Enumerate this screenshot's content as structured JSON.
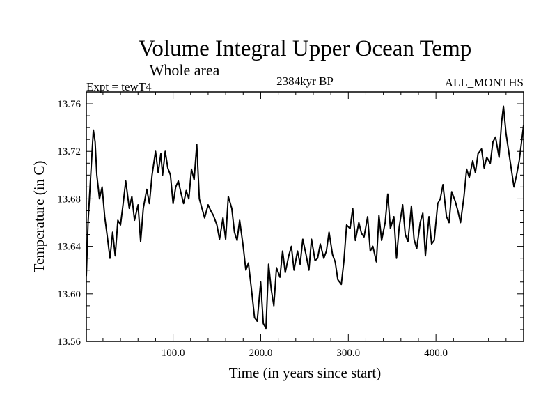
{
  "chart_data": {
    "type": "line",
    "title": "Volume Integral Upper Ocean Temp",
    "subtitle": "Whole area",
    "experiment": "Expt = tewT4",
    "period": "2384kyr BP",
    "months": "ALL_MONTHS",
    "xlabel": "Time (in years since start)",
    "ylabel": "Temperature (in C)",
    "xlim": [
      1,
      500
    ],
    "ylim": [
      13.56,
      13.77
    ],
    "xticks": [
      {
        "value": 100,
        "label": "100.0"
      },
      {
        "value": 200,
        "label": "200.0"
      },
      {
        "value": 300,
        "label": "300.0"
      },
      {
        "value": 400,
        "label": "400.0"
      }
    ],
    "yticks": [
      {
        "value": 13.56,
        "label": "13.56"
      },
      {
        "value": 13.6,
        "label": "13.60"
      },
      {
        "value": 13.64,
        "label": "13.64"
      },
      {
        "value": 13.68,
        "label": "13.68"
      },
      {
        "value": 13.72,
        "label": "13.72"
      },
      {
        "value": 13.76,
        "label": "13.76"
      }
    ],
    "grid": false,
    "series": [
      {
        "name": "Upper Ocean Temp",
        "color": "#000000",
        "x": [
          1,
          3,
          6,
          9,
          11,
          13,
          16,
          19,
          22,
          25,
          28,
          31,
          34,
          37,
          40,
          43,
          46,
          50,
          53,
          56,
          60,
          63,
          66,
          70,
          73,
          76,
          80,
          83,
          86,
          88,
          91,
          94,
          97,
          100,
          103,
          106,
          109,
          112,
          115,
          118,
          121,
          124,
          127,
          130,
          133,
          136,
          140,
          143,
          146,
          150,
          153,
          157,
          160,
          163,
          167,
          170,
          173,
          176,
          180,
          183,
          186,
          190,
          193,
          196,
          200,
          203,
          206,
          209,
          212,
          215,
          218,
          222,
          225,
          228,
          232,
          235,
          238,
          242,
          245,
          248,
          252,
          255,
          258,
          262,
          265,
          268,
          272,
          275,
          278,
          282,
          285,
          288,
          292,
          295,
          298,
          302,
          305,
          308,
          312,
          315,
          318,
          322,
          325,
          328,
          332,
          335,
          338,
          342,
          345,
          348,
          352,
          355,
          358,
          362,
          365,
          368,
          372,
          375,
          378,
          382,
          385,
          388,
          392,
          395,
          398,
          402,
          405,
          408,
          412,
          415,
          418,
          422,
          425,
          428,
          432,
          435,
          438,
          442,
          445,
          448,
          452,
          455,
          458,
          462,
          465,
          468,
          472,
          475,
          477,
          480,
          483,
          486,
          489,
          492,
          495,
          498,
          500
        ],
        "values": [
          13.615,
          13.66,
          13.7,
          13.738,
          13.728,
          13.7,
          13.68,
          13.69,
          13.665,
          13.648,
          13.63,
          13.652,
          13.632,
          13.662,
          13.658,
          13.676,
          13.695,
          13.672,
          13.682,
          13.662,
          13.675,
          13.644,
          13.672,
          13.688,
          13.676,
          13.7,
          13.72,
          13.702,
          13.718,
          13.7,
          13.72,
          13.706,
          13.7,
          13.676,
          13.69,
          13.695,
          13.685,
          13.676,
          13.687,
          13.68,
          13.705,
          13.696,
          13.726,
          13.68,
          13.672,
          13.664,
          13.675,
          13.67,
          13.666,
          13.658,
          13.646,
          13.664,
          13.646,
          13.682,
          13.672,
          13.652,
          13.645,
          13.662,
          13.64,
          13.62,
          13.626,
          13.6,
          13.58,
          13.577,
          13.61,
          13.575,
          13.571,
          13.625,
          13.604,
          13.59,
          13.622,
          13.614,
          13.636,
          13.618,
          13.632,
          13.64,
          13.62,
          13.636,
          13.625,
          13.646,
          13.632,
          13.62,
          13.646,
          13.628,
          13.63,
          13.642,
          13.63,
          13.636,
          13.652,
          13.633,
          13.627,
          13.612,
          13.608,
          13.628,
          13.658,
          13.655,
          13.672,
          13.645,
          13.66,
          13.651,
          13.648,
          13.665,
          13.636,
          13.64,
          13.627,
          13.666,
          13.645,
          13.66,
          13.684,
          13.655,
          13.665,
          13.63,
          13.656,
          13.675,
          13.65,
          13.644,
          13.674,
          13.646,
          13.638,
          13.66,
          13.668,
          13.632,
          13.665,
          13.642,
          13.645,
          13.676,
          13.68,
          13.692,
          13.665,
          13.66,
          13.686,
          13.678,
          13.67,
          13.66,
          13.682,
          13.705,
          13.698,
          13.712,
          13.702,
          13.718,
          13.722,
          13.706,
          13.715,
          13.71,
          13.728,
          13.732,
          13.715,
          13.745,
          13.758,
          13.735,
          13.72,
          13.705,
          13.69,
          13.7,
          13.712,
          13.73,
          13.742
        ]
      }
    ]
  }
}
